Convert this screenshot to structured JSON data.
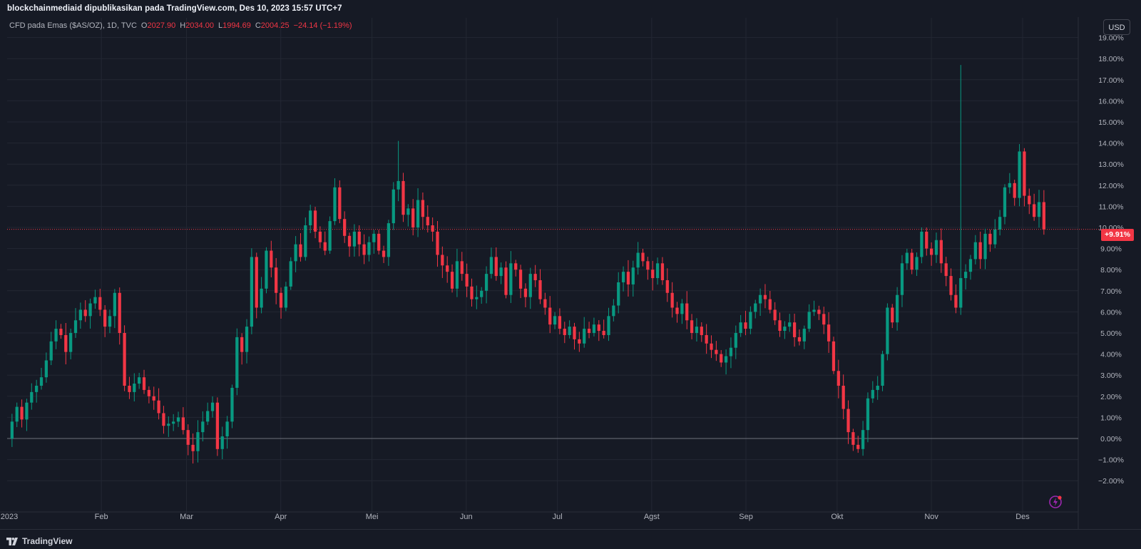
{
  "header": {
    "published_text": "blockchainmediaid dipublikasikan pada TradingView.com, Des 10, 2023 15:57 UTC+7"
  },
  "legend": {
    "symbol": "CFD pada Emas ($AS/OZ), 1D, TVC",
    "open_label": "O",
    "open_value": "2027.90",
    "high_label": "H",
    "high_value": "2034.00",
    "low_label": "L",
    "low_value": "1994.69",
    "close_label": "C",
    "close_value": "2004.25",
    "change": "−24.14 (−1.19%)"
  },
  "toolbar": {
    "currency_label": "USD"
  },
  "price_tag": {
    "label": "+9.91%"
  },
  "footer": {
    "brand": "TradingView"
  },
  "colors": {
    "up": "#089981",
    "down": "#f23645",
    "background": "#161a25",
    "grid": "#232733",
    "axis_text": "#b2b5be"
  },
  "icons": {
    "flash": "flash-icon",
    "logo": "tradingview-logo-icon"
  },
  "chart_data": {
    "type": "candlestick",
    "y_unit": "percent change from first close",
    "y_scale": "percent",
    "ylim": [
      -2.5,
      19.3
    ],
    "yticks": [
      "19.00%",
      "18.00%",
      "17.00%",
      "16.00%",
      "15.00%",
      "14.00%",
      "13.00%",
      "12.00%",
      "11.00%",
      "10.00%",
      "9.00%",
      "8.00%",
      "7.00%",
      "6.00%",
      "5.00%",
      "4.00%",
      "3.00%",
      "2.00%",
      "1.00%",
      "0.00%",
      "−1.00%",
      "−2.00%"
    ],
    "ytick_values": [
      19,
      18,
      17,
      16,
      15,
      14,
      13,
      12,
      11,
      10,
      9,
      8,
      7,
      6,
      5,
      4,
      3,
      2,
      1,
      0,
      -1,
      -2
    ],
    "xticks": [
      "2023",
      "Feb",
      "Mar",
      "Apr",
      "Mei",
      "Jun",
      "Jul",
      "Agst",
      "Sep",
      "Okt",
      "Nov",
      "Des"
    ],
    "xtick_days": [
      0,
      31,
      59,
      90,
      120,
      151,
      181,
      212,
      243,
      273,
      304,
      334
    ],
    "x_start": "2023-01-01",
    "x_end": "2023-12-08",
    "baseline_value": 0.0,
    "last_value": 9.91,
    "path": [
      0.0,
      0.8,
      1.5,
      0.9,
      1.7,
      2.2,
      2.5,
      2.9,
      3.7,
      4.6,
      5.2,
      4.9,
      4.1,
      5.0,
      5.6,
      6.1,
      5.8,
      6.4,
      6.7,
      6.1,
      5.3,
      5.8,
      6.9,
      5.0,
      2.5,
      2.2,
      2.6,
      2.9,
      2.3,
      2.0,
      1.8,
      1.2,
      0.6,
      0.7,
      0.8,
      1.0,
      0.4,
      -0.3,
      -0.6,
      0.3,
      0.8,
      1.3,
      1.7,
      -0.5,
      0.1,
      0.8,
      2.4,
      4.8,
      4.1,
      5.3,
      8.6,
      6.2,
      7.1,
      8.9,
      8.1,
      6.9,
      6.2,
      7.2,
      8.4,
      9.2,
      8.6,
      10.1,
      10.8,
      9.8,
      9.3,
      8.9,
      10.3,
      11.9,
      10.4,
      9.6,
      9.1,
      9.8,
      9.2,
      8.7,
      9.3,
      9.7,
      8.9,
      8.6,
      10.2,
      11.8,
      12.2,
      10.6,
      10.9,
      10.0,
      11.3,
      10.5,
      10.1,
      9.8,
      8.7,
      8.2,
      7.9,
      7.1,
      8.4,
      7.8,
      7.2,
      6.6,
      6.7,
      7.0,
      7.8,
      8.6,
      7.7,
      8.1,
      6.8,
      8.3,
      8.0,
      7.1,
      6.7,
      7.8,
      7.5,
      6.6,
      6.2,
      5.4,
      5.8,
      5.2,
      4.9,
      5.3,
      4.7,
      4.5,
      5.2,
      5.0,
      5.4,
      5.1,
      4.9,
      5.8,
      6.3,
      7.4,
      7.9,
      7.3,
      8.1,
      8.8,
      8.4,
      8.0,
      7.6,
      8.3,
      7.5,
      6.9,
      6.2,
      5.9,
      6.4,
      5.6,
      5.0,
      5.3,
      4.9,
      4.5,
      4.2,
      4.0,
      3.6,
      3.9,
      4.3,
      5.0,
      5.5,
      5.2,
      6.0,
      6.4,
      6.8,
      6.6,
      6.1,
      5.6,
      5.1,
      5.3,
      5.5,
      4.8,
      4.6,
      5.2,
      6.0,
      6.1,
      5.9,
      5.4,
      4.6,
      3.2,
      2.5,
      1.4,
      0.3,
      -0.3,
      -0.5,
      0.4,
      1.9,
      2.3,
      2.5,
      4.0,
      6.2,
      5.5,
      6.8,
      8.3,
      8.8,
      8.0,
      8.6,
      9.8,
      9.0,
      8.7,
      9.4,
      8.3,
      7.7,
      6.8,
      6.2,
      7.6,
      7.9,
      8.5,
      9.3,
      8.5,
      9.7,
      9.2,
      9.9,
      10.5,
      11.9,
      12.1,
      11.4,
      13.6,
      11.5,
      11.1,
      10.5,
      11.2,
      9.91
    ],
    "wick_overrides": {
      "195": 17.7,
      "80": 14.1,
      "236": 13.8
    }
  }
}
